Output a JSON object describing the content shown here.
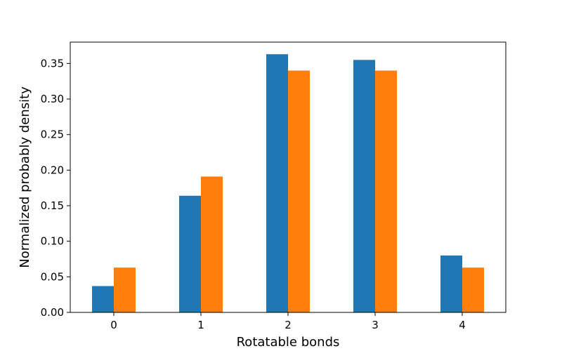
{
  "chart_data": {
    "type": "bar",
    "categories": [
      "0",
      "1",
      "2",
      "3",
      "4"
    ],
    "series": [
      {
        "values": [
          0.037,
          0.164,
          0.363,
          0.355,
          0.08
        ],
        "color": "#1f77b4"
      },
      {
        "values": [
          0.063,
          0.191,
          0.34,
          0.34,
          0.063
        ],
        "color": "#ff7f0e"
      }
    ],
    "xlabel": "Rotatable bonds",
    "ylabel": "Normalized probably density",
    "ylim": [
      0,
      0.38
    ],
    "yticks": [
      0.0,
      0.05,
      0.1,
      0.15,
      0.2,
      0.25,
      0.3,
      0.35
    ],
    "ytick_labels": [
      "0.00",
      "0.05",
      "0.10",
      "0.15",
      "0.20",
      "0.25",
      "0.30",
      "0.35"
    ],
    "grid": false,
    "legend": "none"
  }
}
